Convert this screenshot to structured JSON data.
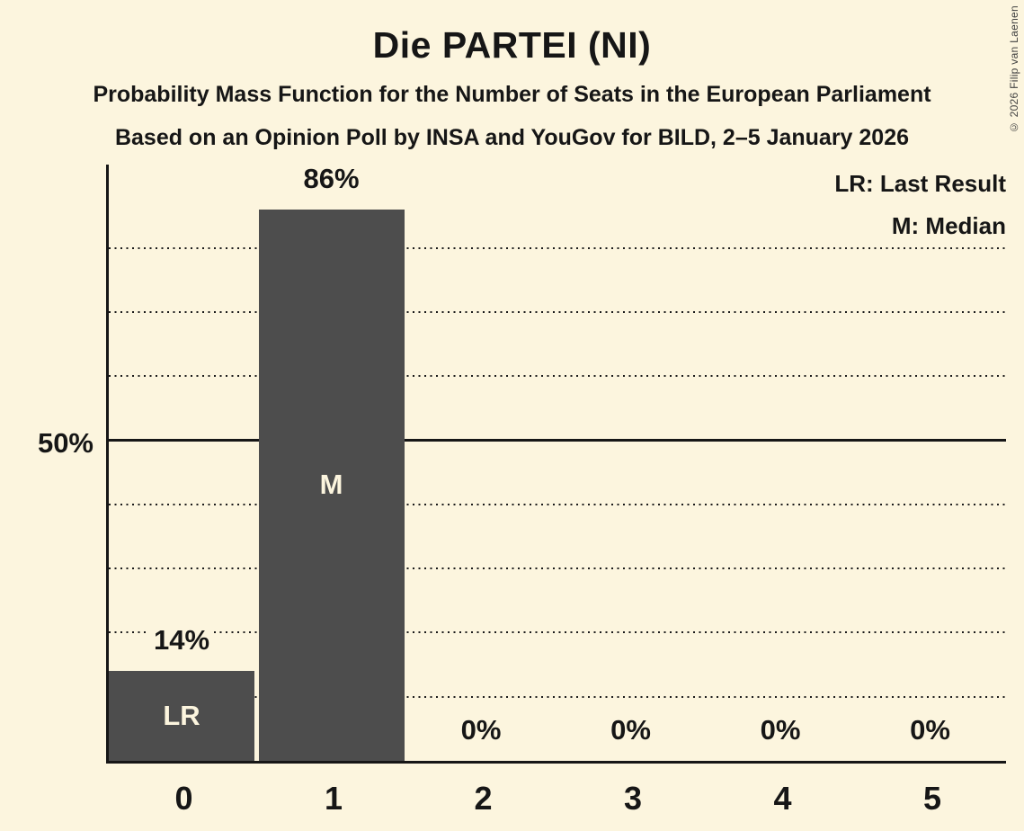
{
  "title": "Die PARTEI (NI)",
  "subtitle_line1": "Probability Mass Function for the Number of Seats in the European Parliament",
  "subtitle_line2": "Based on an Opinion Poll by INSA and YouGov for BILD, 2–5 January 2026",
  "copyright": "© 2026 Filip van Laenen",
  "legend": {
    "last_result": "LR: Last Result",
    "median": "M: Median",
    "position": "top-right"
  },
  "y_axis": {
    "label_50": "50%"
  },
  "chart_data": {
    "type": "bar",
    "title": "Die PARTEI (NI)",
    "categories": [
      "0",
      "1",
      "2",
      "3",
      "4",
      "5"
    ],
    "values": [
      14,
      86,
      0,
      0,
      0,
      0
    ],
    "value_labels": [
      "14%",
      "86%",
      "0%",
      "0%",
      "0%",
      "0%"
    ],
    "bar_annotations": [
      "LR",
      "M",
      "",
      "",
      "",
      ""
    ],
    "xlabel": "",
    "ylabel": "",
    "ylim": [
      0,
      93
    ],
    "gridlines_pct": [
      10,
      20,
      30,
      40,
      60,
      70,
      80
    ],
    "solid_line_pct": 50,
    "grid_style": "dotted",
    "legend_position": "top-right",
    "colors": {
      "background": "#FCF5DE",
      "bar": "#4D4D4D",
      "text": "#161616",
      "bar_label": "#FCF5DE"
    }
  }
}
